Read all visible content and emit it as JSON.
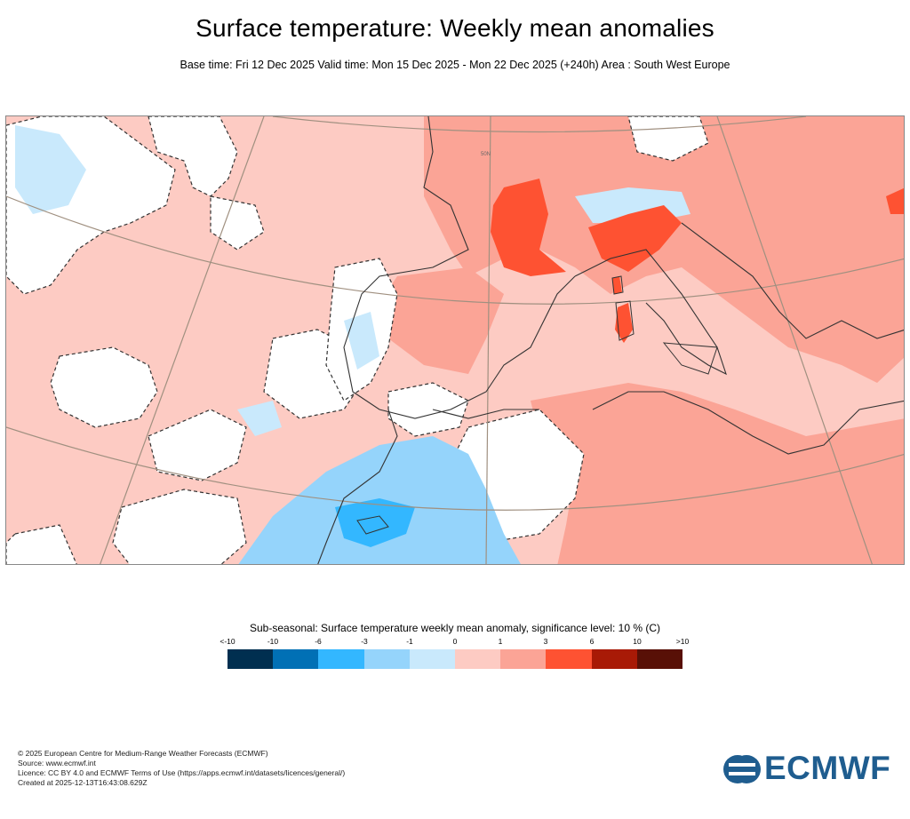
{
  "header": {
    "title": "Surface temperature: Weekly mean anomalies",
    "subtitle": "Base time: Fri 12 Dec 2025 Valid time: Mon 15 Dec 2025 - Mon 22 Dec 2025 (+240h) Area : South West Europe"
  },
  "map": {
    "graticule_label": "50N",
    "colors": {
      "very_cold": "#002f50",
      "cold_strong": "#0170b5",
      "cold": "#33b7ff",
      "cool": "#95d4fb",
      "slightly_cool": "#c9e9fc",
      "slightly_warm": "#fdcbc3",
      "warm": "#fba496",
      "hot": "#fe5232",
      "very_hot": "#a81a06",
      "extreme": "#581006",
      "neutral": "#ffffff",
      "border": "#333333",
      "graticule": "#a09080"
    }
  },
  "legend": {
    "title": "Sub-seasonal: Surface temperature weekly mean anomaly, significance level: 10 % (C)",
    "ticks": [
      "<-10",
      "-10",
      "-6",
      "-3",
      "-1",
      "0",
      "1",
      "3",
      "6",
      "10",
      ">10"
    ],
    "colors": [
      "#002f50",
      "#0170b5",
      "#33b7ff",
      "#95d4fb",
      "#c9e9fc",
      "#fdcbc3",
      "#fba496",
      "#fe5232",
      "#a81a06",
      "#581006"
    ]
  },
  "footer": {
    "line1": "© 2025 European Centre for Medium-Range Weather Forecasts (ECMWF)",
    "line2": "Source: www.ecmwf.int",
    "line3": "Licence: CC BY 4.0 and ECMWF Terms of Use (https://apps.ecmwf.int/datasets/licences/general/)",
    "line4": "Created at 2025-12-13T16:43:08.629Z"
  },
  "logo": {
    "text": "ECMWF"
  }
}
